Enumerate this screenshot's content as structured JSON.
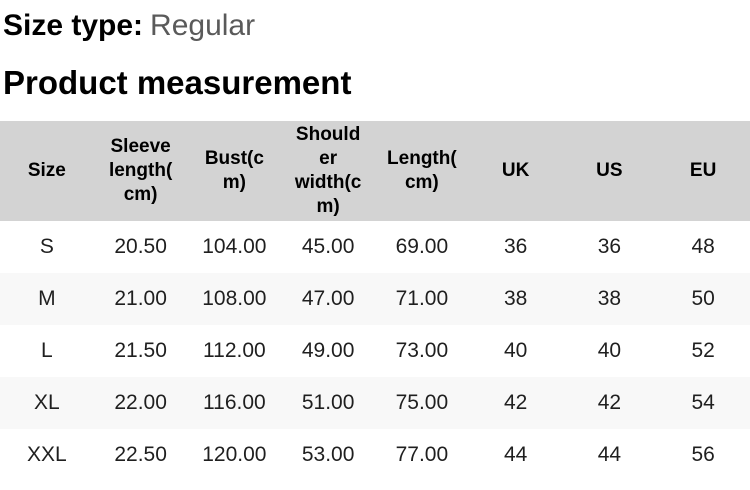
{
  "header": {
    "size_type_label": "Size type:",
    "size_type_value": "Regular",
    "section_title": "Product measurement"
  },
  "colors": {
    "table_header_bg": "#d3d3d3",
    "row_stripe_bg": "#f8f8f8",
    "row_bg": "#ffffff",
    "heading_text": "#000000",
    "size_type_value_text": "#5a5a5a",
    "body_text": "#1f1f1f"
  },
  "table": {
    "columns": [
      {
        "label": "Size"
      },
      {
        "label": "Sleeve\nlength(\ncm)"
      },
      {
        "label": "Bust(c\nm)"
      },
      {
        "label": "Should\ner\nwidth(c\nm)"
      },
      {
        "label": "Length(\ncm)"
      },
      {
        "label": "UK"
      },
      {
        "label": "US"
      },
      {
        "label": "EU"
      }
    ],
    "rows": [
      {
        "size": "S",
        "sleeve_length_cm": "20.50",
        "bust_cm": "104.00",
        "shoulder_width_cm": "45.00",
        "length_cm": "69.00",
        "uk": "36",
        "us": "36",
        "eu": "48"
      },
      {
        "size": "M",
        "sleeve_length_cm": "21.00",
        "bust_cm": "108.00",
        "shoulder_width_cm": "47.00",
        "length_cm": "71.00",
        "uk": "38",
        "us": "38",
        "eu": "50"
      },
      {
        "size": "L",
        "sleeve_length_cm": "21.50",
        "bust_cm": "112.00",
        "shoulder_width_cm": "49.00",
        "length_cm": "73.00",
        "uk": "40",
        "us": "40",
        "eu": "52"
      },
      {
        "size": "XL",
        "sleeve_length_cm": "22.00",
        "bust_cm": "116.00",
        "shoulder_width_cm": "51.00",
        "length_cm": "75.00",
        "uk": "42",
        "us": "42",
        "eu": "54"
      },
      {
        "size": "XXL",
        "sleeve_length_cm": "22.50",
        "bust_cm": "120.00",
        "shoulder_width_cm": "53.00",
        "length_cm": "77.00",
        "uk": "44",
        "us": "44",
        "eu": "56"
      }
    ]
  }
}
